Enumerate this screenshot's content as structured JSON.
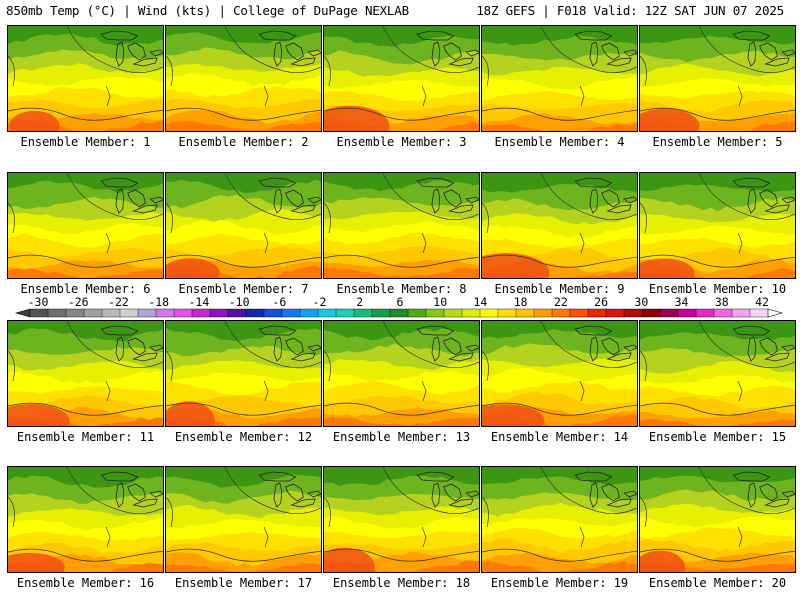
{
  "header": {
    "left": "850mb Temp (°C) | Wind (kts) | College of DuPage NEXLAB",
    "right": "18Z GEFS | F018 Valid: 12Z SAT JUN 07 2025"
  },
  "panels": [
    {
      "member": 1,
      "label": "Ensemble Member: 1"
    },
    {
      "member": 2,
      "label": "Ensemble Member: 2"
    },
    {
      "member": 3,
      "label": "Ensemble Member: 3"
    },
    {
      "member": 4,
      "label": "Ensemble Member: 4"
    },
    {
      "member": 5,
      "label": "Ensemble Member: 5"
    },
    {
      "member": 6,
      "label": "Ensemble Member: 6"
    },
    {
      "member": 7,
      "label": "Ensemble Member: 7"
    },
    {
      "member": 8,
      "label": "Ensemble Member: 8"
    },
    {
      "member": 9,
      "label": "Ensemble Member: 9"
    },
    {
      "member": 10,
      "label": "Ensemble Member: 10"
    },
    {
      "member": 11,
      "label": "Ensemble Member: 11"
    },
    {
      "member": 12,
      "label": "Ensemble Member: 12"
    },
    {
      "member": 13,
      "label": "Ensemble Member: 13"
    },
    {
      "member": 14,
      "label": "Ensemble Member: 14"
    },
    {
      "member": 15,
      "label": "Ensemble Member: 15"
    },
    {
      "member": 16,
      "label": "Ensemble Member: 16"
    },
    {
      "member": 17,
      "label": "Ensemble Member: 17"
    },
    {
      "member": 18,
      "label": "Ensemble Member: 18"
    },
    {
      "member": 19,
      "label": "Ensemble Member: 19"
    },
    {
      "member": 20,
      "label": "Ensemble Member: 20"
    }
  ],
  "colorbar": {
    "tick_labels": [
      "-30",
      "-26",
      "-22",
      "-18",
      "-14",
      "-10",
      "-6",
      "-2",
      "2",
      "6",
      "10",
      "14",
      "18",
      "22",
      "26",
      "30",
      "34",
      "38",
      "42"
    ],
    "colors": [
      "#545454",
      "#6e6e6e",
      "#878787",
      "#a0a0a0",
      "#b8b8b8",
      "#cfcfcf",
      "#b8a0d8",
      "#d278e6",
      "#e650e6",
      "#c828d2",
      "#8c14be",
      "#5014a0",
      "#1428aa",
      "#1450dc",
      "#1478f0",
      "#14a0f0",
      "#14c8e6",
      "#14d2b4",
      "#14be78",
      "#14a04b",
      "#1e8c2d",
      "#50aa14",
      "#82c814",
      "#b4dc14",
      "#dcf000",
      "#ffff00",
      "#ffe100",
      "#ffc300",
      "#ffa000",
      "#ff7800",
      "#ff5000",
      "#f02800",
      "#dc1414",
      "#b40a0a",
      "#8c0000",
      "#a00050",
      "#c80096",
      "#e628c8",
      "#f064e6",
      "#f8a0f0",
      "#ffd2fa"
    ]
  },
  "temperature_colors": {
    "green_dark": "#3c9614",
    "green": "#6eb41e",
    "yellow_green": "#b4d21e",
    "light_yellow": "#e6f000",
    "yellow": "#ffff00",
    "gold": "#ffe100",
    "orange_yellow": "#ffc800",
    "orange": "#ffa000",
    "dark_orange": "#ff7800",
    "red_orange": "#f05014"
  }
}
